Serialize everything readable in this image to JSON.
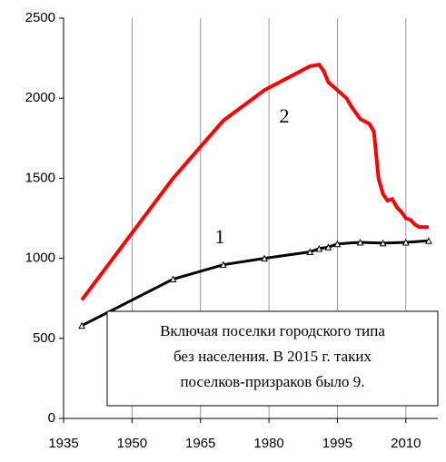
{
  "chart_data": {
    "type": "line",
    "annotations": [
      "1",
      "2"
    ],
    "note": [
      "Включая поселки городского типа",
      "без населения. В 2015 г. таких",
      "поселков-призраков было 9."
    ],
    "xlim": [
      1935,
      2017
    ],
    "xticks": [
      1935,
      1950,
      1965,
      1980,
      1995,
      2010
    ],
    "ylim": [
      0,
      2500
    ],
    "yticks": [
      0,
      500,
      1000,
      1500,
      2000,
      2500
    ],
    "grid": true,
    "series": [
      {
        "name": "1",
        "color": "#000000",
        "x": [
          1939,
          1959,
          1970,
          1979,
          1989,
          1991,
          1993,
          1995,
          2000,
          2005,
          2010,
          2015
        ],
        "values": [
          580,
          870,
          960,
          1000,
          1040,
          1060,
          1070,
          1090,
          1100,
          1095,
          1100,
          1110
        ]
      },
      {
        "name": "2",
        "color": "#ff0000",
        "x": [
          1939,
          1959,
          1970,
          1979,
          1989,
          1991,
          1992,
          1993,
          1995,
          1997,
          1998,
          2000,
          2002,
          2003,
          2004,
          2005,
          2006,
          2007,
          2008,
          2009,
          2010,
          2011,
          2012,
          2013,
          2014,
          2015
        ],
        "values": [
          740,
          1500,
          1860,
          2050,
          2200,
          2210,
          2170,
          2100,
          2050,
          2000,
          1950,
          1870,
          1840,
          1790,
          1500,
          1400,
          1360,
          1370,
          1320,
          1290,
          1250,
          1240,
          1210,
          1195,
          1195,
          1195
        ]
      }
    ]
  }
}
